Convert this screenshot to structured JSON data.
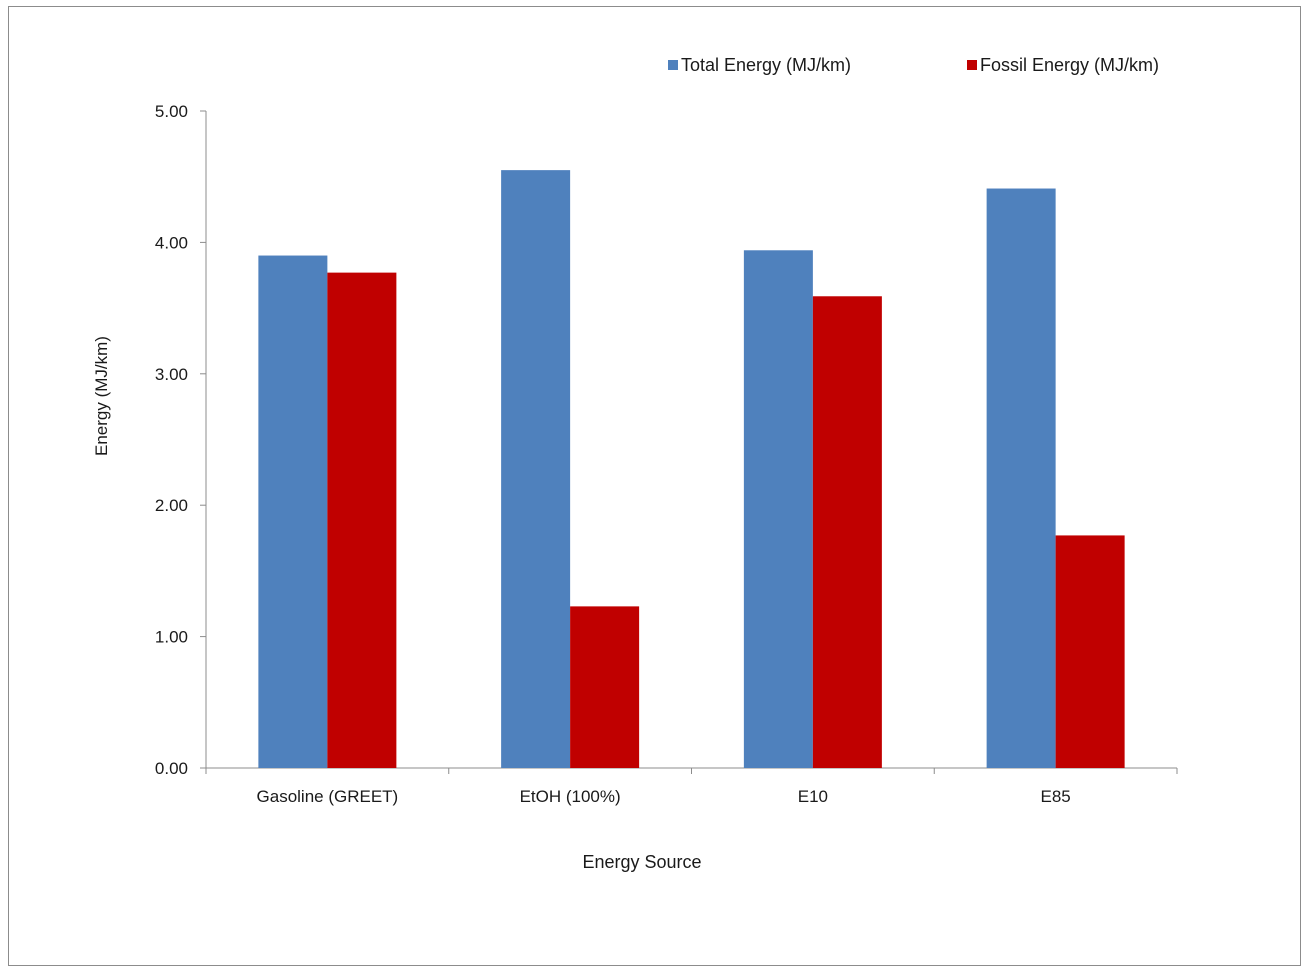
{
  "chart_data": {
    "type": "bar",
    "categories": [
      "Gasoline (GREET)",
      "EtOH (100%)",
      "E10",
      "E85"
    ],
    "series": [
      {
        "name": "Total Energy (MJ/km)",
        "values": [
          3.9,
          4.55,
          3.94,
          4.41
        ],
        "color": "#4f81bd"
      },
      {
        "name": "Fossil Energy (MJ/km)",
        "values": [
          3.77,
          1.23,
          3.59,
          1.77
        ],
        "color": "#c00000"
      }
    ],
    "title": "",
    "xlabel": "Energy Source",
    "ylabel": "Energy (MJ/km)",
    "ylim": [
      0,
      5
    ],
    "yticks": [
      "0.00",
      "1.00",
      "2.00",
      "3.00",
      "4.00",
      "5.00"
    ],
    "grid": false,
    "legend_position": "top-right"
  }
}
